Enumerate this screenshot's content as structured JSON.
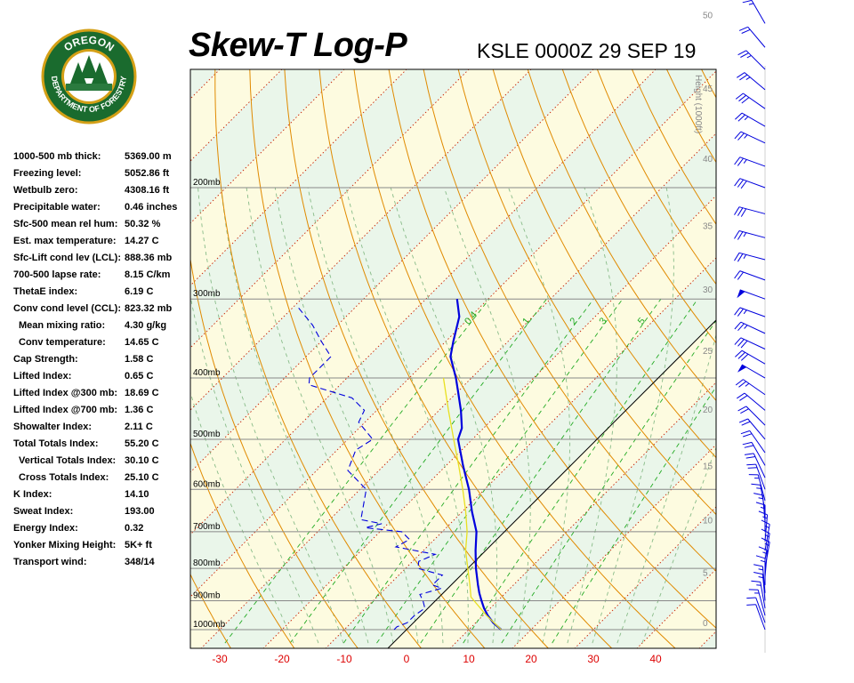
{
  "header": {
    "title": "Skew-T Log-P",
    "station": "KSLE 0000Z 29 SEP 19"
  },
  "logo": {
    "top_text": "OREGON",
    "bottom_text": "DEPARTMENT OF FORESTRY"
  },
  "indices": [
    {
      "label": "1000-500 mb thick:",
      "value": "5369.00 m",
      "indent": false
    },
    {
      "label": "Freezing level:",
      "value": "5052.86 ft",
      "indent": false
    },
    {
      "label": "Wetbulb zero:",
      "value": "4308.16 ft",
      "indent": false
    },
    {
      "label": "Precipitable water:",
      "value": "0.46 inches",
      "indent": false
    },
    {
      "label": "Sfc-500 mean rel hum:",
      "value": "50.32 %",
      "indent": false
    },
    {
      "label": "Est. max temperature:",
      "value": "14.27 C",
      "indent": false
    },
    {
      "label": "Sfc-Lift cond lev (LCL):",
      "value": "888.36 mb",
      "indent": false
    },
    {
      "label": "700-500 lapse rate:",
      "value": "8.15 C/km",
      "indent": false
    },
    {
      "label": "ThetaE index:",
      "value": "6.19 C",
      "indent": false
    },
    {
      "label": "Conv cond level (CCL):",
      "value": "823.32 mb",
      "indent": false
    },
    {
      "label": "Mean mixing ratio:",
      "value": "4.30 g/kg",
      "indent": true
    },
    {
      "label": "Conv temperature:",
      "value": "14.65 C",
      "indent": true
    },
    {
      "label": "Cap Strength:",
      "value": "1.58 C",
      "indent": false
    },
    {
      "label": "Lifted Index:",
      "value": "0.65 C",
      "indent": false
    },
    {
      "label": "Lifted Index @300 mb:",
      "value": "18.69 C",
      "indent": false
    },
    {
      "label": "Lifted Index @700 mb:",
      "value": "1.36 C",
      "indent": false
    },
    {
      "label": "Showalter Index:",
      "value": "2.11 C",
      "indent": false
    },
    {
      "label": "Total Totals Index:",
      "value": "55.20 C",
      "indent": false
    },
    {
      "label": "Vertical Totals Index:",
      "value": "30.10 C",
      "indent": true
    },
    {
      "label": "Cross Totals Index:",
      "value": "25.10 C",
      "indent": true
    },
    {
      "label": "K Index:",
      "value": "14.10",
      "indent": false
    },
    {
      "label": "Sweat Index:",
      "value": "193.00",
      "indent": false
    },
    {
      "label": "Energy Index:",
      "value": "0.32",
      "indent": false
    },
    {
      "label": "Yonker Mixing Height:",
      "value": "5K+ ft",
      "indent": false
    },
    {
      "label": "Transport wind:",
      "value": "348/14",
      "indent": false
    }
  ],
  "colors": {
    "temperature": "#0000dd",
    "dewpoint": "#0000dd",
    "parcel": "#e8e020",
    "dry_adiabat": "#e08a00",
    "moist_adiabat": "#88bb88",
    "mixing_ratio": "#22aa22",
    "isotherm": "#c82000",
    "zero_isotherm": "#000000",
    "isobar": "#888888",
    "band_yellow": "#fdfbe0",
    "band_green": "#eaf6ea",
    "x_tick": "#dd0000"
  },
  "chart_data": {
    "type": "line",
    "title": "Skew-T Log-P",
    "xlabel": "",
    "ylabel": "",
    "x_ticks": [
      -30,
      -20,
      -10,
      0,
      10,
      20,
      30,
      40
    ],
    "pressure_levels": [
      {
        "p": 1000,
        "label": "1000mb"
      },
      {
        "p": 900,
        "label": "900mb"
      },
      {
        "p": 800,
        "label": "800mb"
      },
      {
        "p": 700,
        "label": "700mb"
      },
      {
        "p": 600,
        "label": "600mb"
      },
      {
        "p": 500,
        "label": "500mb"
      },
      {
        "p": 400,
        "label": "400mb"
      },
      {
        "p": 300,
        "label": "300mb"
      },
      {
        "p": 200,
        "label": "200mb"
      }
    ],
    "height_axis": {
      "label": "Height (1000ft)",
      "ticks": [
        0,
        5,
        10,
        15,
        20,
        25,
        30,
        35,
        40,
        45,
        50
      ]
    },
    "mixing_ratio_labels": [
      "0.4",
      "1",
      "2",
      "3",
      "5"
    ],
    "series": [
      {
        "name": "temperature",
        "points": [
          [
            1000,
            15.2
          ],
          [
            975,
            12.8
          ],
          [
            950,
            10.8
          ],
          [
            925,
            9.0
          ],
          [
            900,
            7.4
          ],
          [
            875,
            5.8
          ],
          [
            850,
            4.3
          ],
          [
            800,
            1.3
          ],
          [
            750,
            -1.6
          ],
          [
            700,
            -4.5
          ],
          [
            650,
            -8.5
          ],
          [
            600,
            -12.5
          ],
          [
            550,
            -17.3
          ],
          [
            500,
            -22.3
          ],
          [
            480,
            -23.5
          ],
          [
            450,
            -26.5
          ],
          [
            420,
            -30.0
          ],
          [
            400,
            -32.5
          ],
          [
            370,
            -36.8
          ],
          [
            350,
            -38.8
          ],
          [
            320,
            -41.8
          ],
          [
            300,
            -45.0
          ]
        ]
      },
      {
        "name": "dewpoint",
        "points": [
          [
            1000,
            -2.0
          ],
          [
            990,
            -2.0
          ],
          [
            975,
            -1.0
          ],
          [
            950,
            -1.0
          ],
          [
            925,
            -0.5
          ],
          [
            900,
            -2.0
          ],
          [
            880,
            -3.5
          ],
          [
            860,
            -1.0
          ],
          [
            850,
            -3.0
          ],
          [
            820,
            -3.0
          ],
          [
            800,
            -8.0
          ],
          [
            780,
            -9.0
          ],
          [
            760,
            -7.5
          ],
          [
            740,
            -15.0
          ],
          [
            720,
            -14.0
          ],
          [
            700,
            -16.5
          ],
          [
            690,
            -23.0
          ],
          [
            680,
            -21.0
          ],
          [
            670,
            -25.0
          ],
          [
            600,
            -29.0
          ],
          [
            560,
            -35.0
          ],
          [
            520,
            -37.0
          ],
          [
            500,
            -36.0
          ],
          [
            470,
            -41.0
          ],
          [
            450,
            -42.0
          ],
          [
            430,
            -46.0
          ],
          [
            410,
            -55.0
          ],
          [
            400,
            -56.0
          ],
          [
            370,
            -56.0
          ],
          [
            350,
            -60.0
          ],
          [
            330,
            -64.0
          ],
          [
            310,
            -69.0
          ]
        ]
      },
      {
        "name": "parcel",
        "points": [
          [
            1000,
            15.2
          ],
          [
            950,
            10.6
          ],
          [
            900,
            6.2
          ],
          [
            888,
            5.1
          ],
          [
            850,
            3.0
          ],
          [
            800,
            0.0
          ],
          [
            750,
            -3.2
          ],
          [
            700,
            -6.0
          ],
          [
            650,
            -9.5
          ],
          [
            600,
            -13.5
          ],
          [
            550,
            -18.0
          ],
          [
            500,
            -23.0
          ],
          [
            450,
            -28.5
          ],
          [
            400,
            -34.5
          ]
        ]
      }
    ],
    "wind_barbs": [
      {
        "p": 1000,
        "dir": 340,
        "spd": 10
      },
      {
        "p": 975,
        "dir": 340,
        "spd": 10
      },
      {
        "p": 950,
        "dir": 345,
        "spd": 15
      },
      {
        "p": 925,
        "dir": 350,
        "spd": 15
      },
      {
        "p": 900,
        "dir": 355,
        "spd": 15
      },
      {
        "p": 875,
        "dir": 355,
        "spd": 15
      },
      {
        "p": 850,
        "dir": 360,
        "spd": 15
      },
      {
        "p": 825,
        "dir": 5,
        "spd": 15
      },
      {
        "p": 800,
        "dir": 10,
        "spd": 15
      },
      {
        "p": 775,
        "dir": 10,
        "spd": 15
      },
      {
        "p": 750,
        "dir": 10,
        "spd": 15
      },
      {
        "p": 725,
        "dir": 5,
        "spd": 15
      },
      {
        "p": 700,
        "dir": 360,
        "spd": 15
      },
      {
        "p": 675,
        "dir": 355,
        "spd": 15
      },
      {
        "p": 650,
        "dir": 350,
        "spd": 15
      },
      {
        "p": 625,
        "dir": 345,
        "spd": 15
      },
      {
        "p": 600,
        "dir": 340,
        "spd": 20
      },
      {
        "p": 575,
        "dir": 335,
        "spd": 20
      },
      {
        "p": 550,
        "dir": 330,
        "spd": 20
      },
      {
        "p": 525,
        "dir": 325,
        "spd": 20
      },
      {
        "p": 500,
        "dir": 320,
        "spd": 20
      },
      {
        "p": 475,
        "dir": 315,
        "spd": 20
      },
      {
        "p": 450,
        "dir": 310,
        "spd": 20
      },
      {
        "p": 425,
        "dir": 305,
        "spd": 25
      },
      {
        "p": 400,
        "dir": 300,
        "spd": 50
      },
      {
        "p": 380,
        "dir": 300,
        "spd": 30
      },
      {
        "p": 360,
        "dir": 295,
        "spd": 30
      },
      {
        "p": 340,
        "dir": 295,
        "spd": 25
      },
      {
        "p": 320,
        "dir": 290,
        "spd": 25
      },
      {
        "p": 300,
        "dir": 290,
        "spd": 50
      },
      {
        "p": 280,
        "dir": 290,
        "spd": 20
      },
      {
        "p": 260,
        "dir": 285,
        "spd": 25
      },
      {
        "p": 240,
        "dir": 285,
        "spd": 25
      },
      {
        "p": 220,
        "dir": 285,
        "spd": 30
      },
      {
        "p": 200,
        "dir": 290,
        "spd": 30
      },
      {
        "p": 185,
        "dir": 290,
        "spd": 25
      },
      {
        "p": 170,
        "dir": 295,
        "spd": 25
      },
      {
        "p": 160,
        "dir": 300,
        "spd": 25
      },
      {
        "p": 150,
        "dir": 305,
        "spd": 30
      },
      {
        "p": 140,
        "dir": 310,
        "spd": 25
      },
      {
        "p": 130,
        "dir": 315,
        "spd": 25
      },
      {
        "p": 120,
        "dir": 320,
        "spd": 20
      },
      {
        "p": 110,
        "dir": 330,
        "spd": 15
      }
    ]
  }
}
